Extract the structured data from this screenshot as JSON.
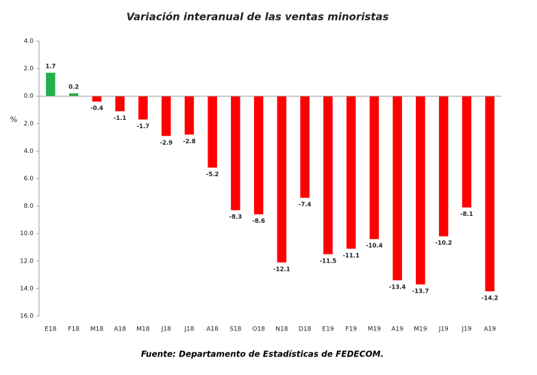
{
  "chart_data": {
    "type": "bar",
    "title": "Variación interanual de las ventas minoristas",
    "y_label": "%",
    "source": "Fuente: Departamento de Estadísticas de FEDECOM.",
    "categories": [
      "E18",
      "F18",
      "M18",
      "A18",
      "M18",
      "J18",
      "J18",
      "A18",
      "S18",
      "O18",
      "N18",
      "D18",
      "E19",
      "F19",
      "M19",
      "A19",
      "M19",
      "J19",
      "J19",
      "A19"
    ],
    "values": [
      1.7,
      0.2,
      -0.4,
      -1.1,
      -1.7,
      -2.9,
      -2.8,
      -5.2,
      -8.3,
      -8.6,
      -12.1,
      -7.4,
      -11.5,
      -11.1,
      -10.4,
      -13.4,
      -13.7,
      -10.2,
      -8.1,
      -14.2
    ],
    "color_positive": "#22b04b",
    "color_negative": "#ff0000",
    "ylim": [
      -16,
      4
    ],
    "yticks": [
      {
        "value": 4,
        "label": "4.0"
      },
      {
        "value": 2,
        "label": "2.0"
      },
      {
        "value": 0,
        "label": "0.0"
      },
      {
        "value": -2,
        "label": "2.0"
      },
      {
        "value": -4,
        "label": "4.0"
      },
      {
        "value": -6,
        "label": "6.0"
      },
      {
        "value": -8,
        "label": "8.0"
      },
      {
        "value": -10,
        "label": "10.0"
      },
      {
        "value": -12,
        "label": "12.0"
      },
      {
        "value": -14,
        "label": "14.0"
      },
      {
        "value": -16,
        "label": "16.0"
      }
    ],
    "grid": false
  }
}
